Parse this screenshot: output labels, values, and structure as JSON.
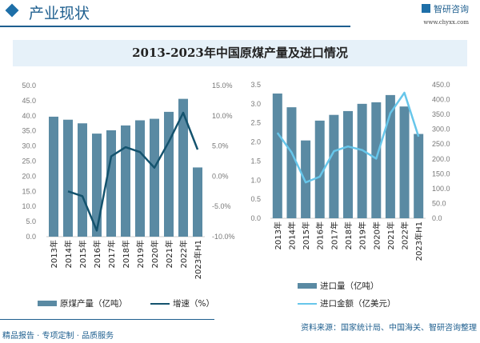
{
  "header": {
    "section_title": "产业现状",
    "brand_name": "智研咨询",
    "brand_url": "www.chyxx.com"
  },
  "title": "2013-2023年中国原煤产量及进口情况",
  "footer": {
    "left": "精品报告 · 专项定制 · 品质服务",
    "source": "资料来源：国家统计局、中国海关、智研咨询整理"
  },
  "colors": {
    "bar": "#5a8aa3",
    "line_left": "#14536e",
    "line_right": "#67c6ea",
    "accent": "#1e5f8f"
  },
  "chart_data": [
    {
      "type": "bar+line",
      "categories": [
        "2013年",
        "2014年",
        "2015年",
        "2016年",
        "2017年",
        "2018年",
        "2019年",
        "2020年",
        "2021年",
        "2022年",
        "2023年H1"
      ],
      "series": [
        {
          "name": "原煤产量（亿吨）",
          "type": "bar",
          "axis": "left",
          "values": [
            39.7,
            38.7,
            37.5,
            34.1,
            35.2,
            36.8,
            38.5,
            39.0,
            41.3,
            45.6,
            22.9
          ]
        },
        {
          "name": "增速（%）",
          "type": "line",
          "axis": "right",
          "values": [
            null,
            -2.5,
            -3.3,
            -9.0,
            3.3,
            4.8,
            4.0,
            1.4,
            5.7,
            10.5,
            4.4
          ]
        }
      ],
      "left_axis": {
        "min": 0,
        "max": 50,
        "step": 5,
        "ticks": [
          "0.0",
          "5.0",
          "10.0",
          "15.0",
          "20.0",
          "25.0",
          "30.0",
          "35.0",
          "40.0",
          "45.0",
          "50.0"
        ]
      },
      "right_axis": {
        "min": -10,
        "max": 15,
        "step": 5,
        "ticks": [
          "-10.0%",
          "-5.0%",
          "0.0%",
          "5.0%",
          "10.0%",
          "15.0%"
        ]
      },
      "legend": "bottom"
    },
    {
      "type": "bar+line",
      "categories": [
        "2013年",
        "2014年",
        "2015年",
        "2016年",
        "2017年",
        "2018年",
        "2019年",
        "2020年",
        "2021年",
        "2022年",
        "2023年H1"
      ],
      "series": [
        {
          "name": "进口量（亿吨）",
          "type": "bar",
          "axis": "left",
          "values": [
            3.27,
            2.91,
            2.04,
            2.56,
            2.71,
            2.81,
            3.0,
            3.04,
            3.23,
            2.93,
            2.21
          ]
        },
        {
          "name": "进口金额（亿美元）",
          "type": "line",
          "axis": "right",
          "values": [
            288,
            222,
            121,
            140,
            226,
            242,
            230,
            201,
            354,
            423,
            275
          ]
        }
      ],
      "left_axis": {
        "min": 0,
        "max": 3.5,
        "step": 0.5,
        "ticks": [
          "0.0",
          "0.5",
          "1.0",
          "1.5",
          "2.0",
          "2.5",
          "3.0",
          "3.5"
        ]
      },
      "right_axis": {
        "min": 0,
        "max": 450,
        "step": 50,
        "ticks": [
          "0.0",
          "50.0",
          "100.0",
          "150.0",
          "200.0",
          "250.0",
          "300.0",
          "350.0",
          "400.0",
          "450.0"
        ]
      },
      "legend": "bottom"
    }
  ]
}
